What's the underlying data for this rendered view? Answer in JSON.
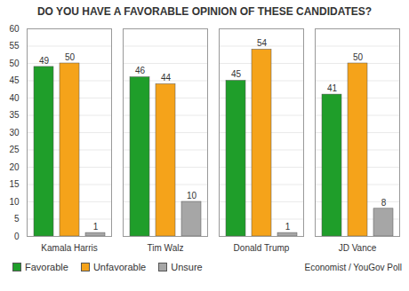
{
  "chart_data": {
    "type": "bar",
    "title": "DO YOU HAVE A FAVORABLE OPINION OF THESE CANDIDATES?",
    "caption": "Economist / YouGov Poll",
    "categories": [
      "Kamala Harris",
      "Tim Walz",
      "Donald Trump",
      "JD Vance"
    ],
    "series": [
      {
        "name": "Favorable",
        "color": "#1f9e2a",
        "values": [
          49,
          46,
          45,
          41
        ]
      },
      {
        "name": "Unfavorable",
        "color": "#f5a31a",
        "values": [
          50,
          44,
          54,
          50
        ]
      },
      {
        "name": "Unsure",
        "color": "#a6a6a6",
        "values": [
          1,
          10,
          1,
          8
        ]
      }
    ],
    "ylim": [
      0,
      60
    ],
    "yticks": [
      0,
      5,
      10,
      15,
      20,
      25,
      30,
      35,
      40,
      45,
      50,
      55,
      60
    ],
    "grid": true,
    "legend": "bottom",
    "data_labels": true
  }
}
